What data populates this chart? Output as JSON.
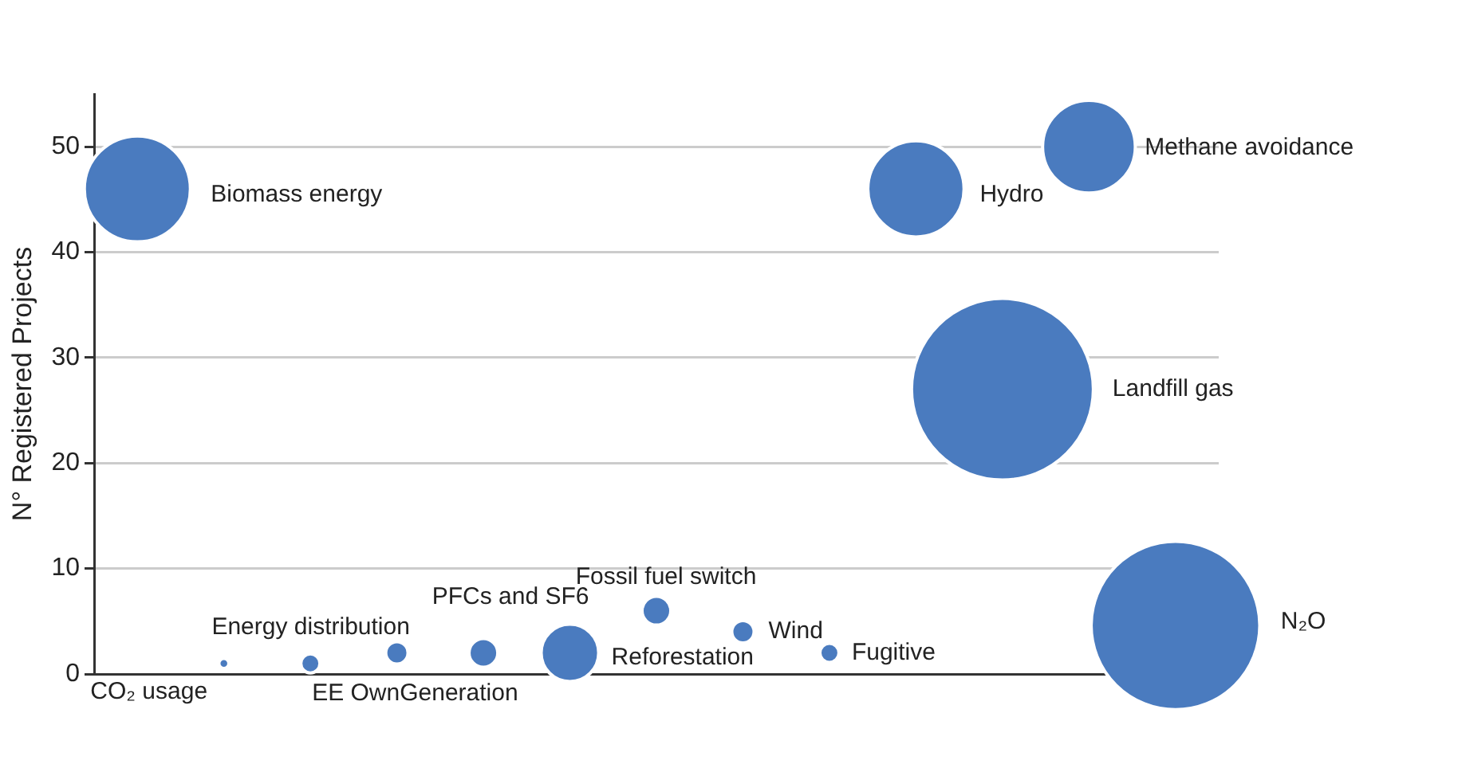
{
  "chart_data": {
    "type": "bubble",
    "ylabel": "N° Registered Projects",
    "categories": [
      null,
      null,
      null,
      null,
      null,
      null,
      null,
      null,
      null,
      null,
      null,
      null,
      null
    ],
    "values": [
      46,
      1,
      1,
      2,
      2,
      2,
      6,
      4,
      2,
      46,
      27,
      50,
      4.6
    ],
    "sizes": [
      0.34,
      0.003,
      0.011,
      0.015,
      0.025,
      0.1,
      0.025,
      0.015,
      0.011,
      0.28,
      1,
      0.26,
      0.86
    ],
    "value_labels": [
      "Biomass energy",
      "CO₂ usage",
      "EE OwnGeneration",
      "Energy distribution",
      "PFCs and SF6",
      "Reforestation",
      "Fossil fuel switch",
      "Wind",
      "Fugitive",
      "Hydro",
      "Landfill gas",
      "Methane avoidance",
      "N₂O"
    ],
    "color": "#4a7bbf",
    "ylim": [
      0,
      55
    ],
    "yticks": [
      0,
      10,
      20,
      30,
      40,
      50
    ],
    "grid": "y",
    "tick_labels": "y"
  }
}
